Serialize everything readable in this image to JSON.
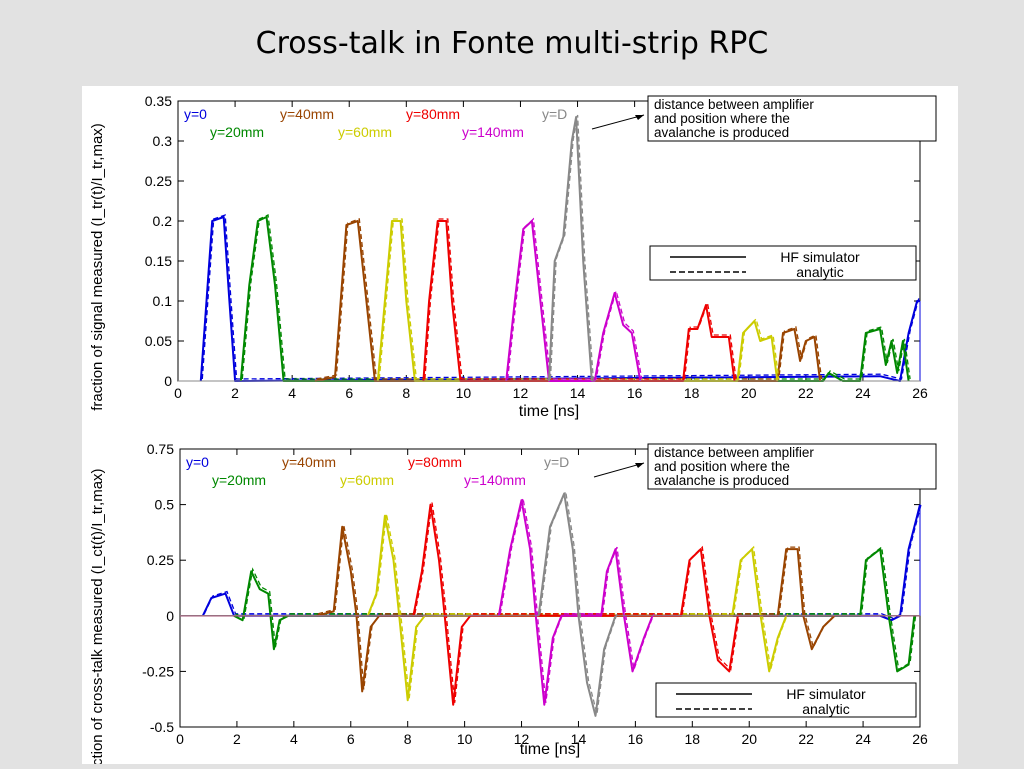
{
  "title": "Cross-talk in Fonte multi-strip RPC",
  "colors": {
    "y0": "#0000dd",
    "y20": "#008800",
    "y40": "#994400",
    "y60": "#cccc00",
    "y80": "#ee0000",
    "y140": "#cc00cc",
    "yD": "#888888"
  },
  "chart_data": [
    {
      "type": "line",
      "title": "",
      "xlabel": "time [ns]",
      "ylabel": "fraction of signal measured (I_tr(t)/I_tr,max)",
      "xlim": [
        0,
        26
      ],
      "ylim": [
        0,
        0.35
      ],
      "xticks": [
        "0",
        "2",
        "4",
        "6",
        "8",
        "10",
        "12",
        "14",
        "16",
        "18",
        "20",
        "22",
        "24",
        "26"
      ],
      "yticks": [
        "0",
        "0.05",
        "0.1",
        "0.15",
        "0.2",
        "0.25",
        "0.3",
        "0.35"
      ],
      "annotation": "distance between amplifier and position where the avalanche is produced",
      "legend_lines": [
        {
          "label": "HF simulator",
          "style": "solid"
        },
        {
          "label": "analytic",
          "style": "dashed"
        }
      ],
      "series": [
        {
          "name": "y=0",
          "key": "y0",
          "pulses": [
            {
              "t": 0.8,
              "a": 0.0
            },
            {
              "t": 1.0,
              "a": 0.1
            },
            {
              "t": 1.2,
              "a": 0.2
            },
            {
              "t": 1.6,
              "a": 0.205
            },
            {
              "t": 1.8,
              "a": 0.1
            },
            {
              "t": 2.0,
              "a": 0.0
            },
            {
              "t": 24.6,
              "a": 0.006
            },
            {
              "t": 25.3,
              "a": 0.0
            },
            {
              "t": 25.6,
              "a": 0.06
            },
            {
              "t": 25.9,
              "a": 0.1
            },
            {
              "t": 26,
              "a": 0.1
            }
          ]
        },
        {
          "name": "y=20mm",
          "key": "y20",
          "pulses": [
            {
              "t": 2.2,
              "a": 0.0
            },
            {
              "t": 2.5,
              "a": 0.12
            },
            {
              "t": 2.8,
              "a": 0.2
            },
            {
              "t": 3.1,
              "a": 0.205
            },
            {
              "t": 3.4,
              "a": 0.12
            },
            {
              "t": 3.7,
              "a": 0.0
            },
            {
              "t": 22.6,
              "a": 0.0
            },
            {
              "t": 22.8,
              "a": 0.01
            },
            {
              "t": 23.3,
              "a": 0.0
            },
            {
              "t": 23.9,
              "a": 0.0
            },
            {
              "t": 24.1,
              "a": 0.06
            },
            {
              "t": 24.6,
              "a": 0.065
            },
            {
              "t": 24.8,
              "a": 0.02
            },
            {
              "t": 25.0,
              "a": 0.05
            },
            {
              "t": 25.2,
              "a": 0.01
            },
            {
              "t": 25.4,
              "a": 0.05
            },
            {
              "t": 25.6,
              "a": 0.0
            }
          ]
        },
        {
          "name": "y=40mm",
          "key": "y40",
          "pulses": [
            {
              "t": 4.8,
              "a": 0.0
            },
            {
              "t": 5.5,
              "a": 0.005
            },
            {
              "t": 5.7,
              "a": 0.1
            },
            {
              "t": 5.9,
              "a": 0.195
            },
            {
              "t": 6.3,
              "a": 0.2
            },
            {
              "t": 6.6,
              "a": 0.1
            },
            {
              "t": 6.9,
              "a": 0.0
            },
            {
              "t": 21.0,
              "a": 0.0
            },
            {
              "t": 21.2,
              "a": 0.06
            },
            {
              "t": 21.6,
              "a": 0.065
            },
            {
              "t": 21.8,
              "a": 0.025
            },
            {
              "t": 22.0,
              "a": 0.05
            },
            {
              "t": 22.3,
              "a": 0.055
            },
            {
              "t": 22.5,
              "a": 0.0
            }
          ]
        },
        {
          "name": "y=60mm",
          "key": "y60",
          "pulses": [
            {
              "t": 7.0,
              "a": 0.0
            },
            {
              "t": 7.3,
              "a": 0.12
            },
            {
              "t": 7.5,
              "a": 0.2
            },
            {
              "t": 7.8,
              "a": 0.2
            },
            {
              "t": 8.0,
              "a": 0.1
            },
            {
              "t": 8.3,
              "a": 0.0
            },
            {
              "t": 19.6,
              "a": 0.0
            },
            {
              "t": 19.8,
              "a": 0.06
            },
            {
              "t": 20.2,
              "a": 0.075
            },
            {
              "t": 20.4,
              "a": 0.05
            },
            {
              "t": 20.8,
              "a": 0.055
            },
            {
              "t": 21.0,
              "a": 0.0
            }
          ]
        },
        {
          "name": "y=80mm",
          "key": "y80",
          "pulses": [
            {
              "t": 8.6,
              "a": 0.0
            },
            {
              "t": 8.8,
              "a": 0.1
            },
            {
              "t": 9.1,
              "a": 0.2
            },
            {
              "t": 9.4,
              "a": 0.2
            },
            {
              "t": 9.6,
              "a": 0.1
            },
            {
              "t": 9.9,
              "a": 0.0
            },
            {
              "t": 17.7,
              "a": 0.0
            },
            {
              "t": 17.9,
              "a": 0.065
            },
            {
              "t": 18.2,
              "a": 0.065
            },
            {
              "t": 18.5,
              "a": 0.095
            },
            {
              "t": 18.7,
              "a": 0.055
            },
            {
              "t": 19.3,
              "a": 0.055
            },
            {
              "t": 19.5,
              "a": 0.0
            }
          ]
        },
        {
          "name": "y=140mm",
          "key": "y140",
          "pulses": [
            {
              "t": 11.5,
              "a": 0.0
            },
            {
              "t": 11.8,
              "a": 0.1
            },
            {
              "t": 12.1,
              "a": 0.19
            },
            {
              "t": 12.4,
              "a": 0.2
            },
            {
              "t": 12.7,
              "a": 0.1
            },
            {
              "t": 13.0,
              "a": 0.0
            },
            {
              "t": 14.6,
              "a": 0.0
            },
            {
              "t": 14.9,
              "a": 0.06
            },
            {
              "t": 15.3,
              "a": 0.11
            },
            {
              "t": 15.6,
              "a": 0.07
            },
            {
              "t": 15.9,
              "a": 0.06
            },
            {
              "t": 16.2,
              "a": 0.0
            }
          ]
        },
        {
          "name": "y=D",
          "key": "yD",
          "pulses": [
            {
              "t": 13.0,
              "a": 0.0
            },
            {
              "t": 13.2,
              "a": 0.15
            },
            {
              "t": 13.5,
              "a": 0.18
            },
            {
              "t": 13.8,
              "a": 0.3
            },
            {
              "t": 13.95,
              "a": 0.33
            },
            {
              "t": 14.2,
              "a": 0.15
            },
            {
              "t": 14.5,
              "a": 0.0
            }
          ]
        }
      ]
    },
    {
      "type": "line",
      "title": "",
      "xlabel": "time [ns]",
      "ylabel": "fraction of cross-talk measured (I_ct(t)/I_tr,max)",
      "xlim": [
        0,
        26
      ],
      "ylim": [
        -0.5,
        0.75
      ],
      "xticks": [
        "0",
        "2",
        "4",
        "6",
        "8",
        "10",
        "12",
        "14",
        "16",
        "18",
        "20",
        "22",
        "24",
        "26"
      ],
      "yticks": [
        "-0.5",
        "-0.25",
        "0",
        "0.25",
        "0.5",
        "0.75"
      ],
      "annotation": "distance between amplifier and position where the avalanche is produced",
      "legend_lines": [
        {
          "label": "HF simulator",
          "style": "solid"
        },
        {
          "label": "analytic",
          "style": "dashed"
        }
      ],
      "series": [
        {
          "name": "y=0",
          "key": "y0",
          "pulses": [
            {
              "t": 0.8,
              "a": 0.0
            },
            {
              "t": 1.1,
              "a": 0.08
            },
            {
              "t": 1.6,
              "a": 0.1
            },
            {
              "t": 1.9,
              "a": 0.0
            },
            {
              "t": 24.6,
              "a": 0.0
            },
            {
              "t": 25.0,
              "a": -0.02
            },
            {
              "t": 25.3,
              "a": 0.0
            },
            {
              "t": 25.6,
              "a": 0.3
            },
            {
              "t": 25.9,
              "a": 0.45
            },
            {
              "t": 26,
              "a": 0.5
            }
          ]
        },
        {
          "name": "y=20mm",
          "key": "y20",
          "pulses": [
            {
              "t": 1.9,
              "a": 0.0
            },
            {
              "t": 2.2,
              "a": -0.02
            },
            {
              "t": 2.5,
              "a": 0.2
            },
            {
              "t": 2.8,
              "a": 0.12
            },
            {
              "t": 3.1,
              "a": 0.1
            },
            {
              "t": 3.3,
              "a": -0.15
            },
            {
              "t": 3.5,
              "a": -0.02
            },
            {
              "t": 3.8,
              "a": 0.0
            },
            {
              "t": 23.9,
              "a": 0.0
            },
            {
              "t": 24.1,
              "a": 0.25
            },
            {
              "t": 24.6,
              "a": 0.3
            },
            {
              "t": 24.9,
              "a": 0.0
            },
            {
              "t": 25.2,
              "a": -0.25
            },
            {
              "t": 25.6,
              "a": -0.22
            },
            {
              "t": 25.8,
              "a": 0.0
            }
          ]
        },
        {
          "name": "y=40mm",
          "key": "y40",
          "pulses": [
            {
              "t": 4.8,
              "a": 0.0
            },
            {
              "t": 5.4,
              "a": 0.02
            },
            {
              "t": 5.7,
              "a": 0.4
            },
            {
              "t": 6.0,
              "a": 0.2
            },
            {
              "t": 6.2,
              "a": 0.0
            },
            {
              "t": 6.4,
              "a": -0.34
            },
            {
              "t": 6.7,
              "a": -0.05
            },
            {
              "t": 7.0,
              "a": 0.0
            },
            {
              "t": 21.0,
              "a": 0.0
            },
            {
              "t": 21.3,
              "a": 0.3
            },
            {
              "t": 21.7,
              "a": 0.3
            },
            {
              "t": 21.9,
              "a": 0.0
            },
            {
              "t": 22.2,
              "a": -0.15
            },
            {
              "t": 22.6,
              "a": -0.05
            },
            {
              "t": 23.0,
              "a": 0.0
            }
          ]
        },
        {
          "name": "y=60mm",
          "key": "y60",
          "pulses": [
            {
              "t": 6.6,
              "a": 0.0
            },
            {
              "t": 6.9,
              "a": 0.1
            },
            {
              "t": 7.2,
              "a": 0.45
            },
            {
              "t": 7.5,
              "a": 0.25
            },
            {
              "t": 7.7,
              "a": 0.0
            },
            {
              "t": 8.0,
              "a": -0.38
            },
            {
              "t": 8.3,
              "a": -0.05
            },
            {
              "t": 8.6,
              "a": 0.0
            },
            {
              "t": 19.4,
              "a": 0.0
            },
            {
              "t": 19.7,
              "a": 0.25
            },
            {
              "t": 20.1,
              "a": 0.3
            },
            {
              "t": 20.4,
              "a": 0.0
            },
            {
              "t": 20.7,
              "a": -0.25
            },
            {
              "t": 21.0,
              "a": -0.1
            },
            {
              "t": 21.3,
              "a": 0.0
            }
          ]
        },
        {
          "name": "y=80mm",
          "key": "y80",
          "pulses": [
            {
              "t": 8.2,
              "a": 0.0
            },
            {
              "t": 8.5,
              "a": 0.2
            },
            {
              "t": 8.8,
              "a": 0.5
            },
            {
              "t": 9.1,
              "a": 0.25
            },
            {
              "t": 9.3,
              "a": 0.0
            },
            {
              "t": 9.6,
              "a": -0.4
            },
            {
              "t": 9.9,
              "a": -0.05
            },
            {
              "t": 10.2,
              "a": 0.0
            },
            {
              "t": 17.6,
              "a": 0.0
            },
            {
              "t": 17.9,
              "a": 0.25
            },
            {
              "t": 18.3,
              "a": 0.3
            },
            {
              "t": 18.6,
              "a": 0.0
            },
            {
              "t": 18.9,
              "a": -0.2
            },
            {
              "t": 19.3,
              "a": -0.25
            },
            {
              "t": 19.6,
              "a": 0.0
            }
          ]
        },
        {
          "name": "y=140mm",
          "key": "y140",
          "pulses": [
            {
              "t": 11.2,
              "a": 0.0
            },
            {
              "t": 11.6,
              "a": 0.3
            },
            {
              "t": 12.0,
              "a": 0.52
            },
            {
              "t": 12.3,
              "a": 0.3
            },
            {
              "t": 12.5,
              "a": 0.0
            },
            {
              "t": 12.8,
              "a": -0.4
            },
            {
              "t": 13.1,
              "a": -0.1
            },
            {
              "t": 13.4,
              "a": 0.0
            },
            {
              "t": 14.8,
              "a": 0.0
            },
            {
              "t": 15.0,
              "a": 0.2
            },
            {
              "t": 15.3,
              "a": 0.3
            },
            {
              "t": 15.6,
              "a": 0.0
            },
            {
              "t": 15.9,
              "a": -0.25
            },
            {
              "t": 16.3,
              "a": -0.1
            },
            {
              "t": 16.6,
              "a": 0.0
            }
          ]
        },
        {
          "name": "y=D",
          "key": "yD",
          "pulses": [
            {
              "t": 12.6,
              "a": 0.0
            },
            {
              "t": 13.0,
              "a": 0.4
            },
            {
              "t": 13.5,
              "a": 0.55
            },
            {
              "t": 13.8,
              "a": 0.3
            },
            {
              "t": 14.0,
              "a": 0.0
            },
            {
              "t": 14.3,
              "a": -0.3
            },
            {
              "t": 14.6,
              "a": -0.45
            },
            {
              "t": 14.9,
              "a": -0.15
            },
            {
              "t": 15.3,
              "a": 0.0
            }
          ]
        }
      ]
    }
  ]
}
